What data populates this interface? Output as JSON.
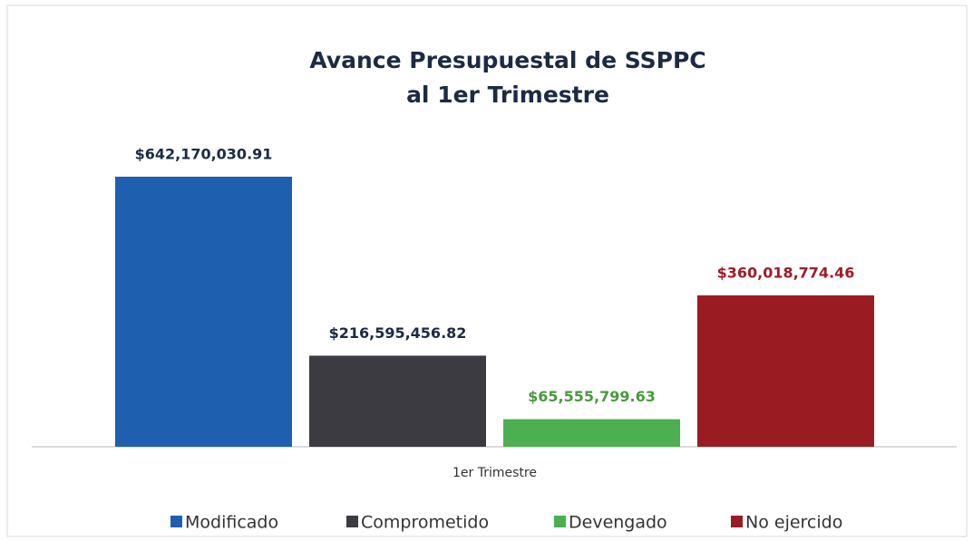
{
  "chart_data": {
    "type": "bar",
    "title": [
      "Avance Presupuestal de SSPPC",
      "al 1er Trimestre"
    ],
    "categories": [
      "1er Trimestre"
    ],
    "series": [
      {
        "name": "Modificado",
        "color": "#1f5fb0",
        "label_color": "#1c2a44",
        "values": [
          642170030.91
        ],
        "value_labels": [
          "$642,170,030.91"
        ]
      },
      {
        "name": "Comprometido",
        "color": "#3b3b41",
        "label_color": "#1c2a44",
        "values": [
          216595456.82
        ],
        "value_labels": [
          "$216,595,456.82"
        ]
      },
      {
        "name": "Devengado",
        "color": "#4caf50",
        "label_color": "#4a9a3e",
        "values": [
          65555799.63
        ],
        "value_labels": [
          "$65,555,799.63"
        ]
      },
      {
        "name": "No ejercido",
        "color": "#9b1b22",
        "label_color": "#a01c26",
        "values": [
          360018774.46
        ],
        "value_labels": [
          "$360,018,774.46"
        ]
      }
    ],
    "legend": "bottom"
  }
}
